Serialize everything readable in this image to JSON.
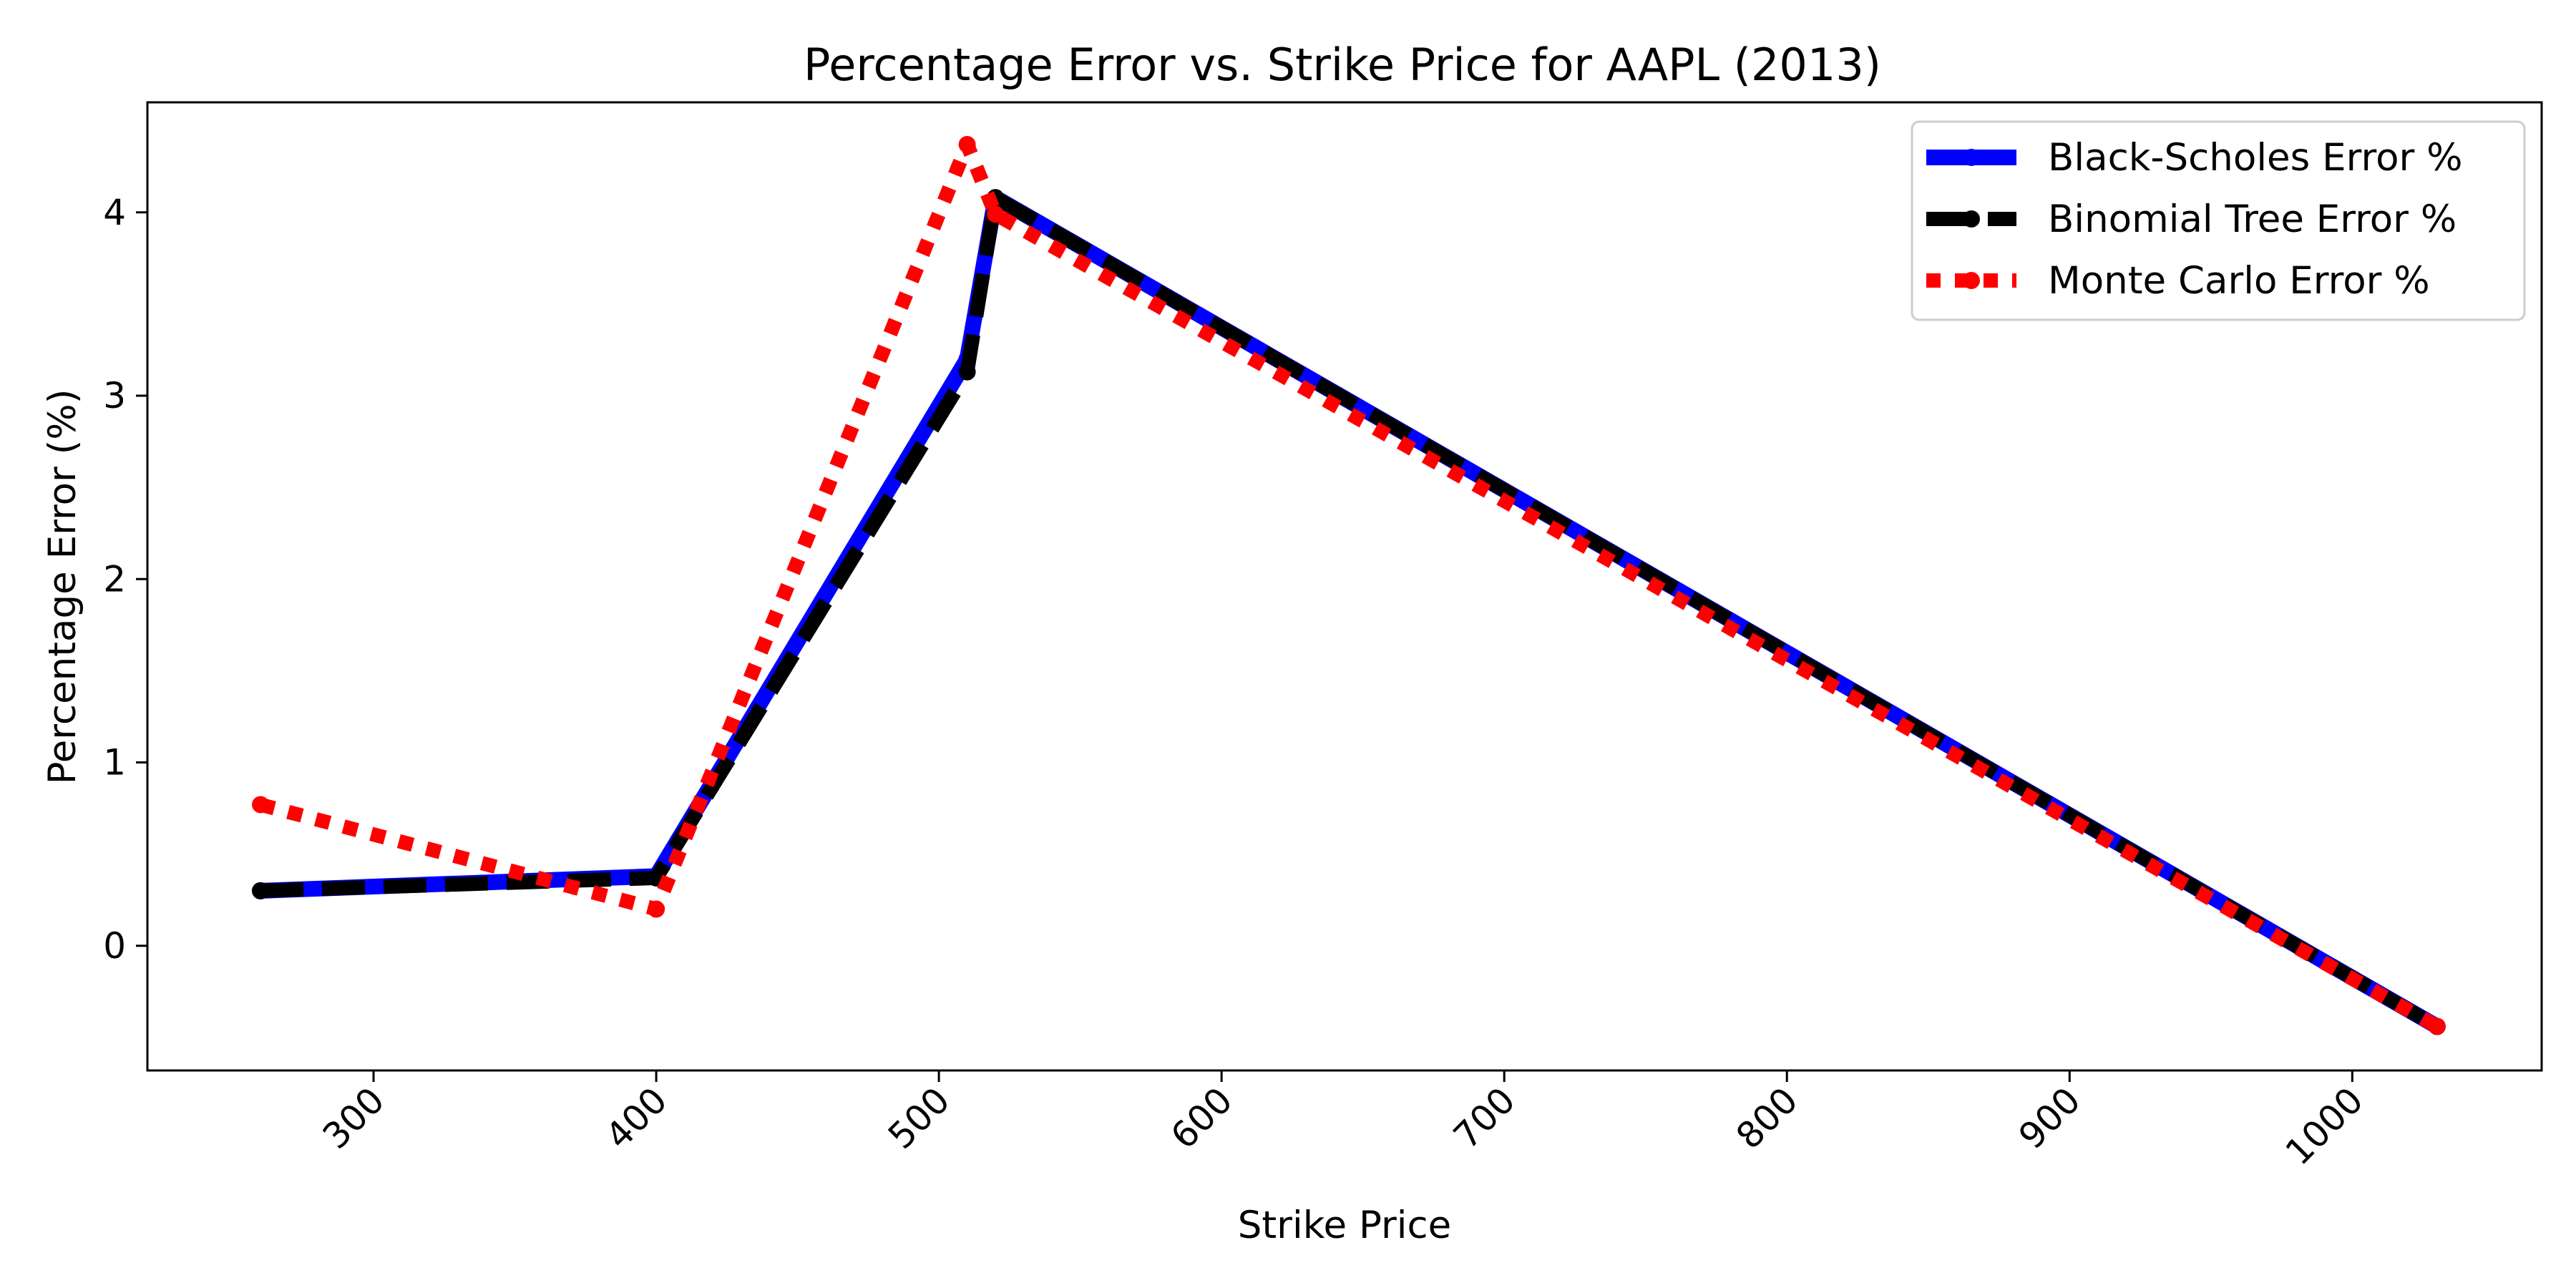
{
  "chart_data": {
    "type": "line",
    "title": "Percentage Error vs. Strike Price for AAPL (2013)",
    "xlabel": "Strike Price",
    "ylabel": "Percentage Error (%)",
    "xlim": [
      220,
      1067
    ],
    "ylim": [
      -0.68,
      4.6
    ],
    "xticks": [
      300,
      400,
      500,
      600,
      700,
      800,
      900,
      1000
    ],
    "yticks": [
      0,
      1,
      2,
      3,
      4
    ],
    "grid": false,
    "legend_position": "top-right",
    "series": [
      {
        "name": "Black-Scholes Error %",
        "color": "#0000ff",
        "style": "solid",
        "x": [
          260,
          400,
          510,
          520,
          1030
        ],
        "y": [
          0.3,
          0.38,
          3.2,
          4.08,
          -0.44
        ]
      },
      {
        "name": "Binomial Tree Error %",
        "color": "#000000",
        "style": "dashed",
        "x": [
          260,
          400,
          510,
          520,
          1030
        ],
        "y": [
          0.3,
          0.37,
          3.13,
          4.08,
          -0.44
        ]
      },
      {
        "name": "Monte Carlo Error %",
        "color": "#ff0000",
        "style": "dotted",
        "x": [
          260,
          400,
          510,
          520,
          1030
        ],
        "y": [
          0.77,
          0.2,
          4.37,
          3.99,
          -0.44
        ]
      }
    ]
  }
}
